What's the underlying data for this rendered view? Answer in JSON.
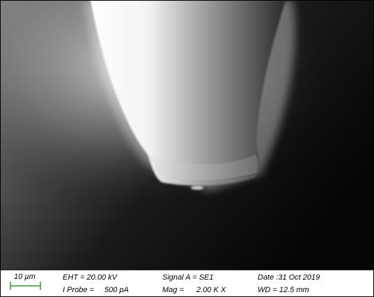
{
  "info_bar": {
    "scale_bar": "10 µm",
    "columns": [
      [
        {
          "label": "EHT = 20.00 kV",
          "value": null
        },
        {
          "label": "I Probe =",
          "value": "500 pA"
        }
      ],
      [
        {
          "label": "Signal A = SE1",
          "value": null
        },
        {
          "label": "Mag =",
          "value": "2.00 K X"
        }
      ],
      [
        {
          "label": "Date :31 Oct 2019",
          "value": null
        },
        {
          "label": "WD = 12.5 mm",
          "value": null
        }
      ]
    ]
  }
}
